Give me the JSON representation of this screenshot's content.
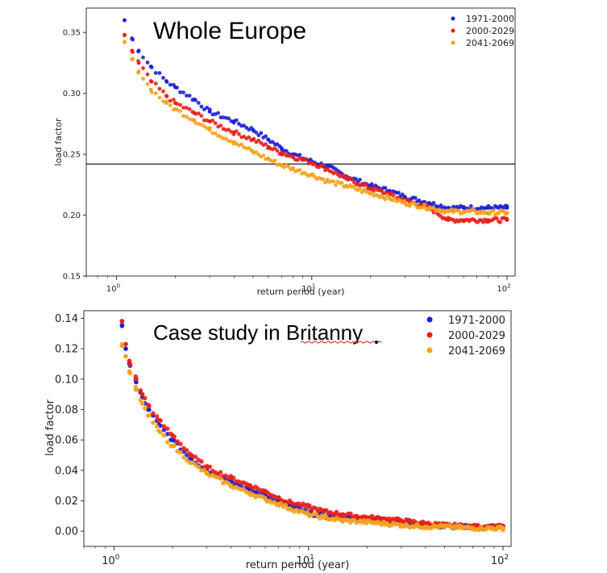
{
  "colors": {
    "1971-2000": "#1f1fd6",
    "2000-2029": "#e8201a",
    "2041-2069": "#f5a21e"
  },
  "chart_data": [
    {
      "type": "scatter",
      "title": "Whole Europe",
      "xlabel": "return period (year)",
      "ylabel": "load factor",
      "xscale": "log",
      "xlim": [
        0.7,
        110
      ],
      "ylim": [
        0.15,
        0.37
      ],
      "xticks": [
        {
          "value": 1,
          "base": "10",
          "exp": "0"
        },
        {
          "value": 10,
          "base": "10",
          "exp": "1"
        },
        {
          "value": 100,
          "base": "10",
          "exp": "2"
        }
      ],
      "yticks": [
        "0.15",
        "0.20",
        "0.25",
        "0.30",
        "0.35"
      ],
      "reference_line": 0.242,
      "legend": "top-right",
      "series": [
        {
          "name": "1971-2000",
          "color": "#1f1fd6",
          "points": [
            [
              1.1,
              0.36
            ],
            [
              1.2,
              0.345
            ],
            [
              1.3,
              0.335
            ],
            [
              1.5,
              0.322
            ],
            [
              1.8,
              0.31
            ],
            [
              2,
              0.305
            ],
            [
              2.5,
              0.295
            ],
            [
              3,
              0.285
            ],
            [
              4,
              0.277
            ],
            [
              5,
              0.27
            ],
            [
              6,
              0.262
            ],
            [
              7,
              0.255
            ],
            [
              8,
              0.25
            ],
            [
              10,
              0.244
            ],
            [
              12,
              0.24
            ],
            [
              15,
              0.232
            ],
            [
              20,
              0.224
            ],
            [
              25,
              0.22
            ],
            [
              30,
              0.215
            ],
            [
              40,
              0.21
            ],
            [
              50,
              0.206
            ],
            [
              60,
              0.206
            ],
            [
              80,
              0.206
            ],
            [
              100,
              0.206
            ]
          ]
        },
        {
          "name": "2000-2029",
          "color": "#e8201a",
          "points": [
            [
              1.1,
              0.348
            ],
            [
              1.2,
              0.335
            ],
            [
              1.3,
              0.325
            ],
            [
              1.5,
              0.31
            ],
            [
              1.8,
              0.298
            ],
            [
              2,
              0.292
            ],
            [
              2.5,
              0.284
            ],
            [
              3,
              0.277
            ],
            [
              4,
              0.268
            ],
            [
              5,
              0.262
            ],
            [
              6,
              0.256
            ],
            [
              7,
              0.251
            ],
            [
              8,
              0.248
            ],
            [
              10,
              0.243
            ],
            [
              12,
              0.238
            ],
            [
              15,
              0.23
            ],
            [
              20,
              0.222
            ],
            [
              25,
              0.217
            ],
            [
              30,
              0.212
            ],
            [
              40,
              0.206
            ],
            [
              50,
              0.196
            ],
            [
              60,
              0.196
            ],
            [
              80,
              0.196
            ],
            [
              100,
              0.196
            ]
          ]
        },
        {
          "name": "2041-2069",
          "color": "#f5a21e",
          "points": [
            [
              1.1,
              0.342
            ],
            [
              1.2,
              0.328
            ],
            [
              1.3,
              0.318
            ],
            [
              1.5,
              0.303
            ],
            [
              1.8,
              0.292
            ],
            [
              2,
              0.287
            ],
            [
              2.5,
              0.278
            ],
            [
              3,
              0.27
            ],
            [
              4,
              0.26
            ],
            [
              5,
              0.252
            ],
            [
              6,
              0.246
            ],
            [
              7,
              0.241
            ],
            [
              8,
              0.238
            ],
            [
              10,
              0.233
            ],
            [
              12,
              0.228
            ],
            [
              15,
              0.224
            ],
            [
              20,
              0.218
            ],
            [
              25,
              0.214
            ],
            [
              30,
              0.21
            ],
            [
              40,
              0.206
            ],
            [
              50,
              0.203
            ],
            [
              60,
              0.203
            ],
            [
              80,
              0.202
            ],
            [
              100,
              0.202
            ]
          ]
        }
      ]
    },
    {
      "type": "scatter",
      "title": "Case study in Britanny",
      "xlabel": "return period (year)",
      "ylabel": "load factor",
      "xscale": "log",
      "xlim": [
        0.7,
        110
      ],
      "ylim": [
        -0.01,
        0.145
      ],
      "xticks": [
        {
          "value": 1,
          "base": "10",
          "exp": "0"
        },
        {
          "value": 10,
          "base": "10",
          "exp": "1"
        },
        {
          "value": 100,
          "base": "10",
          "exp": "2"
        }
      ],
      "yticks": [
        "0.00",
        "0.02",
        "0.04",
        "0.06",
        "0.08",
        "0.10",
        "0.12",
        "0.14"
      ],
      "legend": "top-right",
      "series": [
        {
          "name": "1971-2000",
          "color": "#1f1fd6",
          "points": [
            [
              1.1,
              0.135
            ],
            [
              1.15,
              0.12
            ],
            [
              1.2,
              0.11
            ],
            [
              1.3,
              0.098
            ],
            [
              1.4,
              0.088
            ],
            [
              1.5,
              0.08
            ],
            [
              1.7,
              0.07
            ],
            [
              2,
              0.06
            ],
            [
              2.5,
              0.047
            ],
            [
              3,
              0.04
            ],
            [
              4,
              0.033
            ],
            [
              5,
              0.027
            ],
            [
              6,
              0.023
            ],
            [
              7,
              0.02
            ],
            [
              8,
              0.017
            ],
            [
              10,
              0.012
            ],
            [
              12,
              0.01
            ],
            [
              15,
              0.009
            ],
            [
              20,
              0.008
            ],
            [
              25,
              0.007
            ],
            [
              30,
              0.006
            ],
            [
              40,
              0.004
            ],
            [
              50,
              0.003
            ],
            [
              70,
              0.003
            ],
            [
              100,
              0.003
            ]
          ]
        },
        {
          "name": "2000-2029",
          "color": "#e8201a",
          "points": [
            [
              1.1,
              0.138
            ],
            [
              1.15,
              0.123
            ],
            [
              1.2,
              0.112
            ],
            [
              1.3,
              0.1
            ],
            [
              1.4,
              0.09
            ],
            [
              1.5,
              0.083
            ],
            [
              1.7,
              0.073
            ],
            [
              2,
              0.063
            ],
            [
              2.5,
              0.05
            ],
            [
              3,
              0.042
            ],
            [
              4,
              0.035
            ],
            [
              5,
              0.03
            ],
            [
              6,
              0.026
            ],
            [
              7,
              0.022
            ],
            [
              8,
              0.019
            ],
            [
              10,
              0.016
            ],
            [
              12,
              0.013
            ],
            [
              15,
              0.011
            ],
            [
              20,
              0.009
            ],
            [
              25,
              0.008
            ],
            [
              30,
              0.007
            ],
            [
              40,
              0.005
            ],
            [
              50,
              0.004
            ],
            [
              70,
              0.003
            ],
            [
              100,
              0.003
            ]
          ]
        },
        {
          "name": "2041-2069",
          "color": "#f5a21e",
          "points": [
            [
              1.1,
              0.122
            ],
            [
              1.15,
              0.115
            ],
            [
              1.2,
              0.105
            ],
            [
              1.3,
              0.093
            ],
            [
              1.4,
              0.084
            ],
            [
              1.5,
              0.076
            ],
            [
              1.7,
              0.066
            ],
            [
              2,
              0.056
            ],
            [
              2.5,
              0.045
            ],
            [
              3,
              0.038
            ],
            [
              4,
              0.03
            ],
            [
              5,
              0.025
            ],
            [
              6,
              0.021
            ],
            [
              7,
              0.018
            ],
            [
              8,
              0.015
            ],
            [
              10,
              0.011
            ],
            [
              12,
              0.009
            ],
            [
              15,
              0.007
            ],
            [
              20,
              0.006
            ],
            [
              25,
              0.005
            ],
            [
              30,
              0.004
            ],
            [
              40,
              0.003
            ],
            [
              50,
              0.003
            ],
            [
              70,
              0.002
            ],
            [
              100,
              0.002
            ]
          ]
        }
      ]
    }
  ]
}
